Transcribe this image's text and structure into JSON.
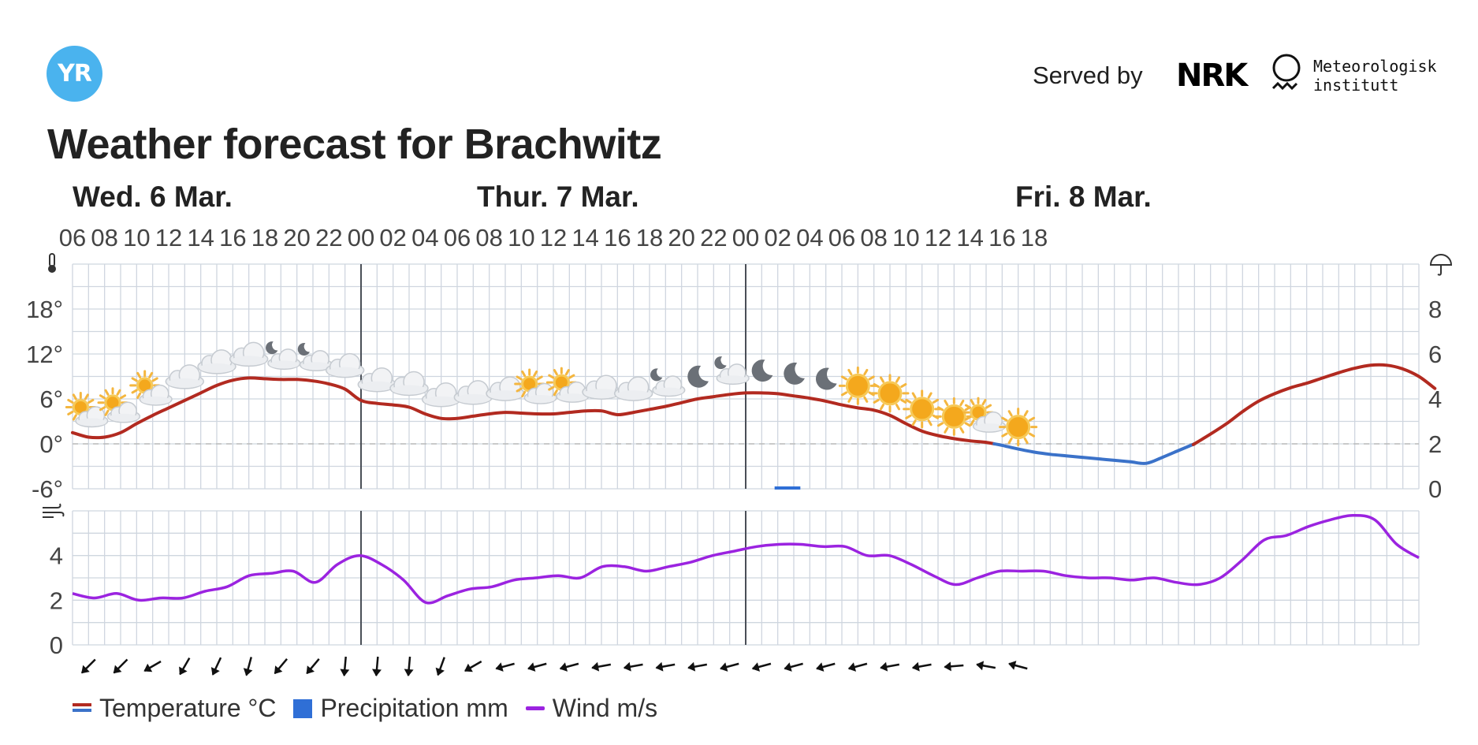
{
  "header": {
    "logo_text": "YR",
    "served_by": "Served by",
    "nrk": "NRK",
    "met_name_line1": "Meteorologisk",
    "met_name_line2": "institutt"
  },
  "title": "Weather forecast for Brachwitz",
  "days": [
    "Wed. 6 Mar.",
    "Thur. 7 Mar.",
    "Fri. 8 Mar."
  ],
  "colors": {
    "temp_warm": "#b22a20",
    "temp_cold": "#3b72c9",
    "precip": "#2f6fd6",
    "wind": "#9b23e0",
    "grid": "#cfd6df",
    "day_line": "#4a4f57"
  },
  "legend": {
    "temperature": "Temperature °C",
    "precipitation": "Precipitation mm",
    "wind": "Wind m/s"
  },
  "chart_data": [
    {
      "type": "line",
      "name": "temperature-precipitation",
      "x_tick_labels": [
        "06",
        "08",
        "10",
        "12",
        "14",
        "16",
        "18",
        "20",
        "22",
        "00",
        "02",
        "04",
        "06",
        "08",
        "10",
        "12",
        "14",
        "16",
        "18",
        "20",
        "22",
        "00",
        "02",
        "04",
        "06",
        "08",
        "10",
        "12",
        "14",
        "16",
        "18"
      ],
      "x_start": "Wed 06:00",
      "x_step_hours": 1,
      "y_left_ticks": [
        "18°",
        "12°",
        "6°",
        "0°",
        "-6°"
      ],
      "y_left_range": [
        -6,
        24
      ],
      "y_right_ticks": [
        "8",
        "6",
        "4",
        "2",
        "0"
      ],
      "y_right_range": [
        0,
        10
      ],
      "series": [
        {
          "name": "Temperature °C",
          "values": [
            1.5,
            0.9,
            0.9,
            1.5,
            2.7,
            3.8,
            4.8,
            5.8,
            6.8,
            7.8,
            8.5,
            8.8,
            8.7,
            8.6,
            8.6,
            8.4,
            8.0,
            7.3,
            5.8,
            5.4,
            5.2,
            4.9,
            4.0,
            3.4,
            3.4,
            3.7,
            4.0,
            4.2,
            4.1,
            4.0,
            4.0,
            4.2,
            4.4,
            4.4,
            3.9,
            4.2,
            4.6,
            5.0,
            5.5,
            6.0,
            6.3,
            6.6,
            6.8,
            6.8,
            6.7,
            6.4,
            6.1,
            5.7,
            5.2,
            4.8,
            4.5,
            3.8,
            2.7,
            1.7,
            1.1,
            0.7,
            0.4,
            0.2,
            -0.2,
            -0.7,
            -1.1,
            -1.4,
            -1.6,
            -1.8,
            -2.0,
            -2.2,
            -2.4,
            -2.6,
            -1.8,
            -0.9,
            0.0,
            1.3,
            2.7,
            4.3,
            5.7,
            6.7,
            7.5,
            8.1,
            8.8,
            9.5,
            10.1,
            10.5,
            10.5,
            10.0,
            9.0,
            7.4
          ]
        },
        {
          "name": "Precipitation mm",
          "values": [
            {
              "x_hours_from_start": 44,
              "mm": 0.02
            }
          ]
        }
      ],
      "weather_icons": [
        "partly-cloudy-day",
        "partly-cloudy-day",
        "partly-cloudy-day",
        "cloud",
        "cloud",
        "cloud",
        "partly-cloudy-night",
        "partly-cloudy-night",
        "cloud",
        "cloud",
        "cloud",
        "cloud",
        "cloud",
        "cloud",
        "partly-cloudy-day",
        "partly-cloudy-day",
        "cloud",
        "cloud",
        "partly-cloudy-night",
        "clear-night",
        "partly-cloudy-night",
        "clear-night",
        "clear-night",
        "clear-night",
        "sun",
        "sun",
        "sun",
        "sun",
        "partly-cloudy-day",
        "sun"
      ]
    },
    {
      "type": "line",
      "name": "wind",
      "y_ticks": [
        "4",
        "2",
        "0"
      ],
      "y_range": [
        0,
        6
      ],
      "series": [
        {
          "name": "Wind m/s",
          "values": [
            2.3,
            2.1,
            2.3,
            2.0,
            2.1,
            2.1,
            2.4,
            2.6,
            3.1,
            3.2,
            3.3,
            2.8,
            3.6,
            4.0,
            3.6,
            2.9,
            1.9,
            2.2,
            2.5,
            2.6,
            2.9,
            3.0,
            3.1,
            3.0,
            3.5,
            3.5,
            3.3,
            3.5,
            3.7,
            4.0,
            4.2,
            4.4,
            4.5,
            4.5,
            4.4,
            4.4,
            4.0,
            4.0,
            3.6,
            3.1,
            2.7,
            3.0,
            3.3,
            3.3,
            3.3,
            3.1,
            3.0,
            3.0,
            2.9,
            3.0,
            2.8,
            2.7,
            3.0,
            3.8,
            4.7,
            4.9,
            5.3,
            5.6,
            5.8,
            5.6,
            4.5,
            3.9
          ]
        }
      ],
      "wind_arrow_direction_deg": [
        45,
        45,
        60,
        30,
        25,
        15,
        40,
        40,
        5,
        5,
        5,
        20,
        60,
        75,
        75,
        75,
        80,
        80,
        80,
        80,
        75,
        75,
        75,
        75,
        75,
        80,
        80,
        85,
        100,
        105
      ]
    }
  ]
}
